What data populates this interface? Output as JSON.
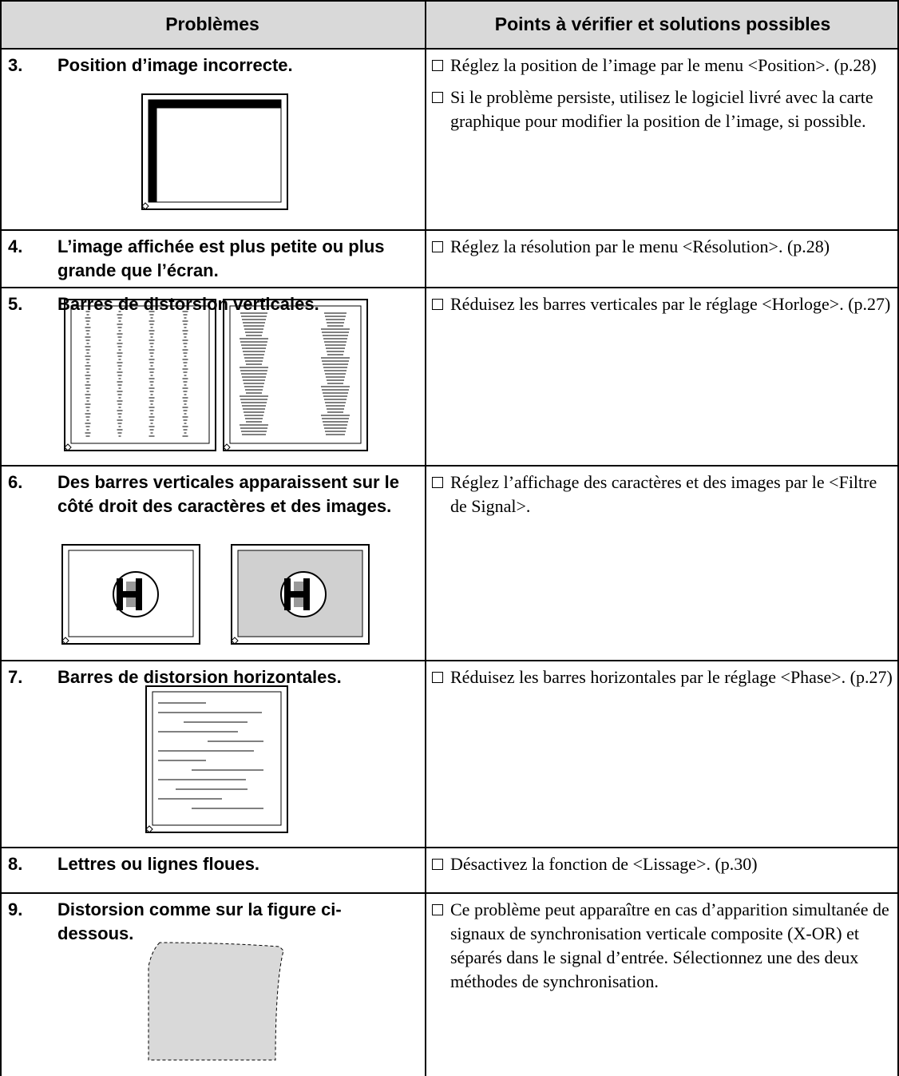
{
  "header": {
    "columns": [
      "Problèmes",
      "Points à vérifier et solutions possibles"
    ]
  },
  "rows": [
    {
      "number": "3.",
      "problem": "Position d’image incorrecte.",
      "solutions": [
        "Réglez la position de l’image par le menu <Position>. (p.28)",
        "Si le problème persiste, utilisez le logiciel livré avec la carte graphique pour modifier la position de l’image, si possible."
      ]
    },
    {
      "number": "4.",
      "problem": "L’image affichée est plus petite ou plus grande que l’écran.",
      "solutions": [
        "Réglez la résolution par le menu <Résolution>. (p.28)"
      ]
    },
    {
      "number": "5.",
      "problem": "Barres de distorsion verticales.",
      "solutions": [
        "Réduisez les barres verticales par le réglage <Horloge>. (p.27)"
      ]
    },
    {
      "number": "6.",
      "problem": "Des barres verticales apparaissent sur le côté droit des caractères et des images.",
      "solutions": [
        "Réglez l’affichage des caractères et des images par le <Filtre de Signal>."
      ]
    },
    {
      "number": "7.",
      "problem": "Barres de distorsion horizontales.",
      "solutions": [
        "Réduisez les barres horizontales par le réglage <Phase>. (p.27)"
      ]
    },
    {
      "number": "8.",
      "problem": "Lettres ou lignes floues.",
      "solutions": [
        "Désactivez la fonction de <Lissage>. (p.30)"
      ]
    },
    {
      "number": "9.",
      "problem": "Distorsion comme sur la figure ci-dessous.",
      "solutions": [
        "Ce problème peut apparaître en cas d’apparition simultanée de signaux de synchronisation verticale composite (X-OR) et séparés dans le signal d’entrée. Sélectionnez une des deux méthodes de synchronisation."
      ]
    }
  ]
}
